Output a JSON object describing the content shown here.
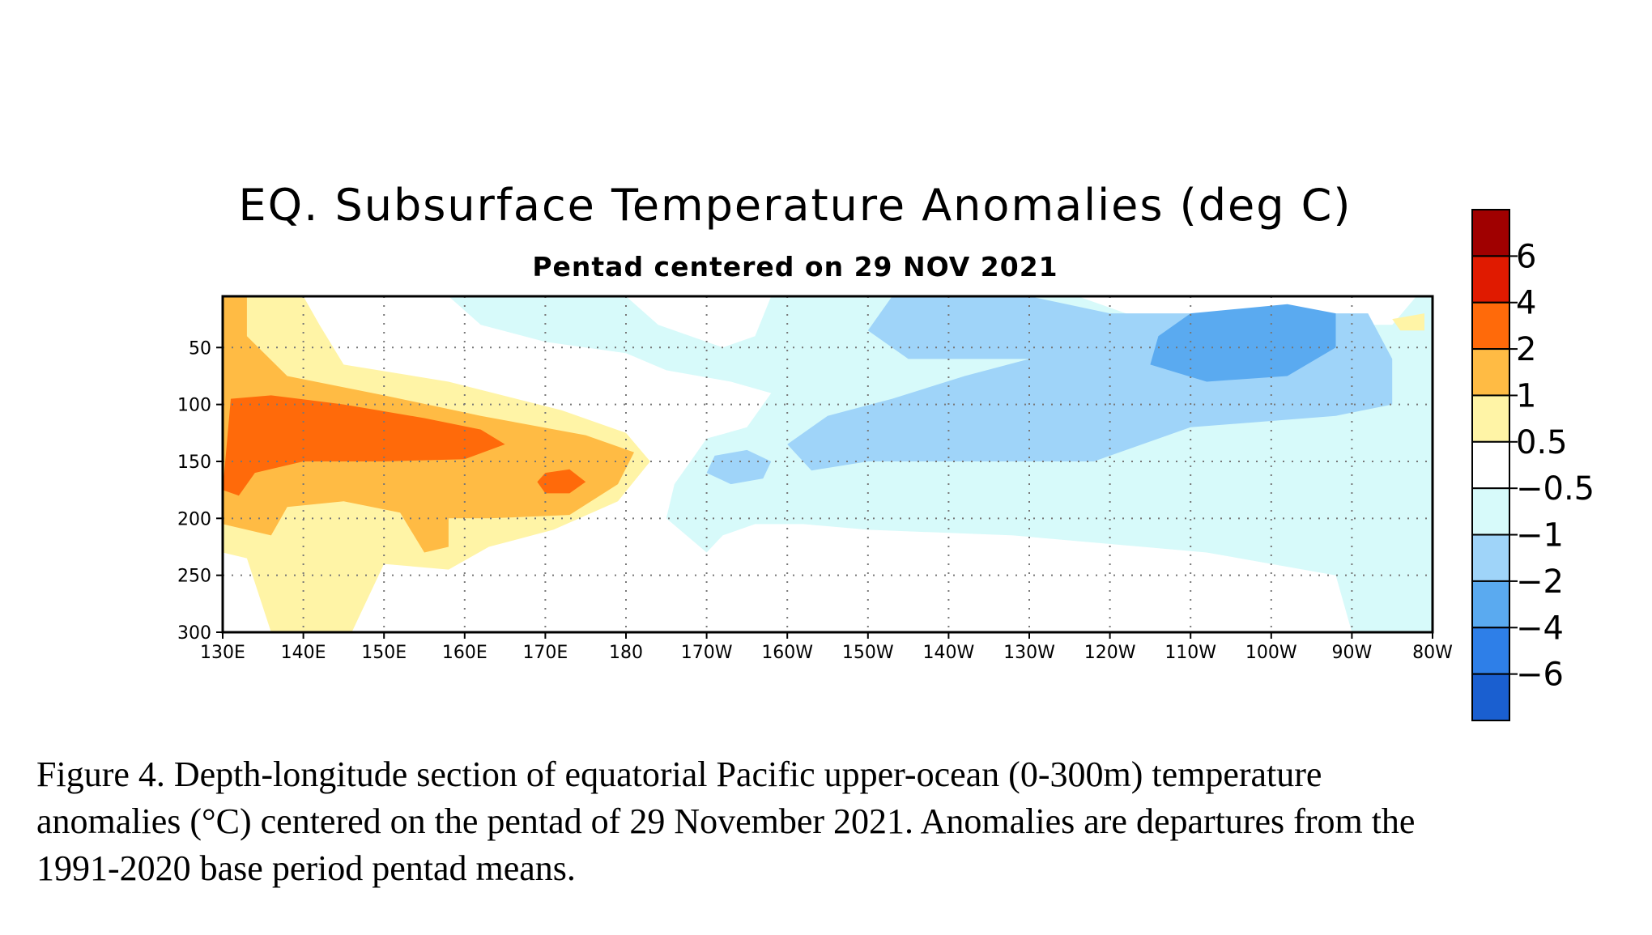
{
  "chart_data": {
    "type": "heatmap",
    "title": "EQ. Subsurface Temperature Anomalies (deg C)",
    "subtitle": "Pentad centered on 29 NOV 2021",
    "x_ticks": [
      "130E",
      "140E",
      "150E",
      "160E",
      "170E",
      "180",
      "170W",
      "160W",
      "150W",
      "140W",
      "130W",
      "120W",
      "110W",
      "100W",
      "90W",
      "80W"
    ],
    "x_range": [
      "130E",
      "80W"
    ],
    "y_ticks": [
      50,
      100,
      150,
      200,
      250,
      300
    ],
    "y_range": [
      5,
      300
    ],
    "y_reversed": true,
    "grid": "dotted",
    "legend_placement": "right",
    "color_levels": [
      {
        "min": 6,
        "max": null,
        "color": "#a00000"
      },
      {
        "min": 4,
        "max": 6,
        "color": "#e01a00"
      },
      {
        "min": 2,
        "max": 4,
        "color": "#ff6a0a"
      },
      {
        "min": 1,
        "max": 2,
        "color": "#ffbb44"
      },
      {
        "min": 0.5,
        "max": 1,
        "color": "#fff4a6"
      },
      {
        "min": -0.5,
        "max": 0.5,
        "color": "#ffffff"
      },
      {
        "min": -1,
        "max": -0.5,
        "color": "#d7fafa"
      },
      {
        "min": -2,
        "max": -1,
        "color": "#9fd4f9"
      },
      {
        "min": -4,
        "max": -2,
        "color": "#5aaaf0"
      },
      {
        "min": -6,
        "max": -4,
        "color": "#2e7fe8"
      },
      {
        "min": null,
        "max": -6,
        "color": "#1a5fd0"
      }
    ],
    "colorbar_labels": [
      "6",
      "4",
      "2",
      "1",
      "0.5",
      "−0.5",
      "−1",
      "−2",
      "−4",
      "−6"
    ],
    "features": [
      {
        "level": 2,
        "description": "warm core",
        "lon_range": [
          "130E",
          "175E"
        ],
        "depth_range": [
          90,
          170
        ]
      },
      {
        "level": 1,
        "description": "warm layer",
        "lon_range": [
          "130E",
          "180"
        ],
        "depth_range": [
          70,
          210
        ]
      },
      {
        "level": -4,
        "description": "cold core",
        "lon_range": [
          "115W",
          "100W"
        ],
        "depth_range": [
          20,
          80
        ]
      },
      {
        "level": -2,
        "description": "cold layer",
        "lon_range": [
          "150W",
          "90W"
        ],
        "depth_range": [
          10,
          150
        ]
      }
    ]
  },
  "caption": [
    "Figure 4. Depth-longitude section of equatorial Pacific upper-ocean (0-300m) temperature",
    "anomalies (°C) centered on the pentad of 29 November 2021. Anomalies are departures from the",
    "1991-2020 base period pentad means."
  ]
}
